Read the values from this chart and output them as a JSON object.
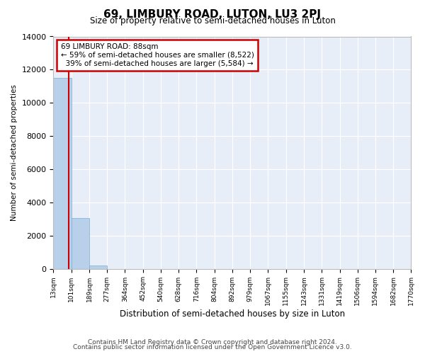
{
  "title": "69, LIMBURY ROAD, LUTON, LU3 2PJ",
  "subtitle": "Size of property relative to semi-detached houses in Luton",
  "xlabel": "Distribution of semi-detached houses by size in Luton",
  "ylabel": "Number of semi-detached properties",
  "property_size": 88,
  "property_label": "69 LIMBURY ROAD: 88sqm",
  "pct_smaller": 59,
  "n_smaller": 8522,
  "pct_larger": 39,
  "n_larger": 5584,
  "bin_edges": [
    13,
    101,
    189,
    277,
    364,
    452,
    540,
    628,
    716,
    804,
    892,
    979,
    1067,
    1155,
    1243,
    1331,
    1419,
    1506,
    1594,
    1682,
    1770
  ],
  "bin_labels": [
    "13sqm",
    "101sqm",
    "189sqm",
    "277sqm",
    "364sqm",
    "452sqm",
    "540sqm",
    "628sqm",
    "716sqm",
    "804sqm",
    "892sqm",
    "979sqm",
    "1067sqm",
    "1155sqm",
    "1243sqm",
    "1331sqm",
    "1419sqm",
    "1506sqm",
    "1594sqm",
    "1682sqm",
    "1770sqm"
  ],
  "bar_heights": [
    11500,
    3050,
    200,
    0,
    0,
    0,
    0,
    0,
    0,
    0,
    0,
    0,
    0,
    0,
    0,
    0,
    0,
    0,
    0,
    0
  ],
  "bar_color": "#b8d0ea",
  "bar_edge_color": "#7aadd4",
  "vline_color": "#cc0000",
  "vline_x": 88,
  "ylim": [
    0,
    14000
  ],
  "yticks": [
    0,
    2000,
    4000,
    6000,
    8000,
    10000,
    12000,
    14000
  ],
  "annotation_box_color": "#cc0000",
  "background_color": "#e8eef8",
  "grid_color": "#ffffff",
  "footer_line1": "Contains HM Land Registry data © Crown copyright and database right 2024.",
  "footer_line2": "Contains public sector information licensed under the Open Government Licence v3.0."
}
